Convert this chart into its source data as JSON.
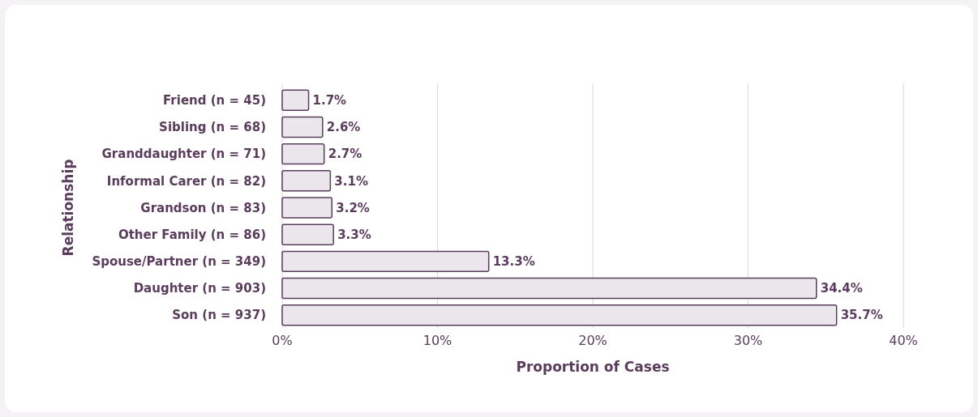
{
  "chart_data": {
    "type": "bar",
    "orientation": "horizontal",
    "xlabel": "Proportion of Cases",
    "ylabel": "Relationship",
    "categories": [
      "Friend (n = 45)",
      "Sibling (n = 68)",
      "Granddaughter (n = 71)",
      "Informal Carer (n = 82)",
      "Grandson (n = 83)",
      "Other Family (n = 86)",
      "Spouse/Partner (n = 349)",
      "Daughter (n = 903)",
      "Son (n = 937)"
    ],
    "values": [
      1.7,
      2.6,
      2.7,
      3.1,
      3.2,
      3.3,
      13.3,
      34.4,
      35.7
    ],
    "value_labels": [
      "1.7%",
      "2.6%",
      "2.7%",
      "3.1%",
      "3.2%",
      "3.3%",
      "13.3%",
      "34.4%",
      "35.7%"
    ],
    "color": "#ebe6ec",
    "xlim": [
      0,
      40
    ],
    "xticks": [
      {
        "value": 0,
        "label": "0%"
      },
      {
        "value": 10,
        "label": "10%"
      },
      {
        "value": 20,
        "label": "20%"
      },
      {
        "value": 30,
        "label": "30%"
      },
      {
        "value": 40,
        "label": "40%"
      }
    ],
    "grid": "x"
  }
}
